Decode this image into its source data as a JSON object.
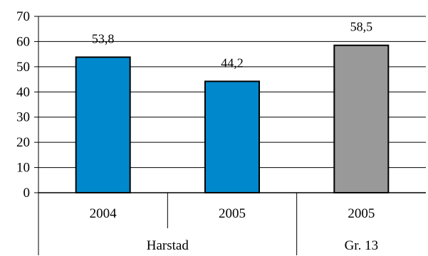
{
  "chart_data": {
    "type": "bar",
    "title": "",
    "xlabel": "",
    "ylabel": "",
    "ylim": [
      0,
      70
    ],
    "yticks": [
      0,
      10,
      20,
      30,
      40,
      50,
      60,
      70
    ],
    "grid": true,
    "legend": "none",
    "categories": [
      "2004",
      "2005",
      "2005"
    ],
    "groups": [
      {
        "label": "Harstad",
        "categories": [
          0,
          1
        ]
      },
      {
        "label": "Gr. 13",
        "categories": [
          2
        ]
      }
    ],
    "values": [
      53.8,
      44.2,
      58.5
    ],
    "data_labels": [
      "53,8",
      "44,2",
      "58,5"
    ],
    "colors": [
      "#0088cc",
      "#0088cc",
      "#999999"
    ]
  }
}
